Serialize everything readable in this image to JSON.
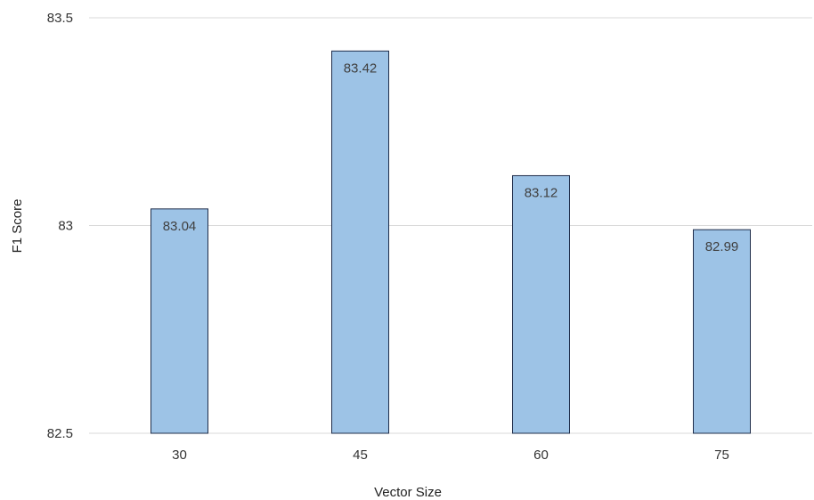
{
  "chart_data": {
    "type": "bar",
    "title": "",
    "xlabel": "Vector Size",
    "ylabel": "F1 Score",
    "categories": [
      "30",
      "45",
      "60",
      "75"
    ],
    "values": [
      83.04,
      83.42,
      83.12,
      82.99
    ],
    "data_labels": [
      "83.04",
      "83.42",
      "83.12",
      "82.99"
    ],
    "ylim": [
      82.5,
      83.5
    ],
    "yticks": [
      82.5,
      83,
      83.5
    ],
    "ytick_labels": [
      "82.5",
      "83",
      "83.5"
    ],
    "grid": true,
    "legend": "none",
    "bar_color": "#9dc3e6",
    "bar_edge_color": "#1f2d4a",
    "grid_color": "#d9d9d9"
  }
}
